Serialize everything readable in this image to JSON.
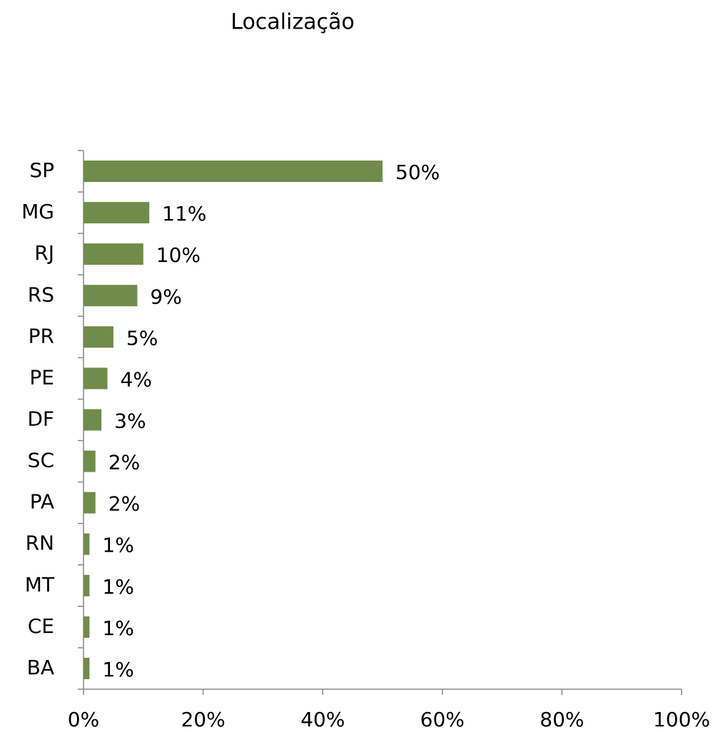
{
  "chart_data": {
    "type": "barh",
    "title": "Localização",
    "categories": [
      "SP",
      "MG",
      "RJ",
      "RS",
      "PR",
      "PE",
      "DF",
      "SC",
      "PA",
      "RN",
      "MT",
      "CE",
      "BA"
    ],
    "values": [
      50,
      11,
      10,
      9,
      5,
      4,
      3,
      2,
      2,
      1,
      1,
      1,
      1
    ],
    "value_labels": [
      "50%",
      "11%",
      "10%",
      "9%",
      "5%",
      "4%",
      "3%",
      "2%",
      "2%",
      "1%",
      "1%",
      "1%",
      "1%"
    ],
    "color": "#708b4b",
    "xlim": [
      0,
      100
    ],
    "xticks": [
      {
        "value": 0,
        "label": "0%"
      },
      {
        "value": 20,
        "label": "20%"
      },
      {
        "value": 40,
        "label": "40%"
      },
      {
        "value": 60,
        "label": "60%"
      },
      {
        "value": 80,
        "label": "80%"
      },
      {
        "value": 100,
        "label": "100%"
      }
    ],
    "grid": false
  }
}
